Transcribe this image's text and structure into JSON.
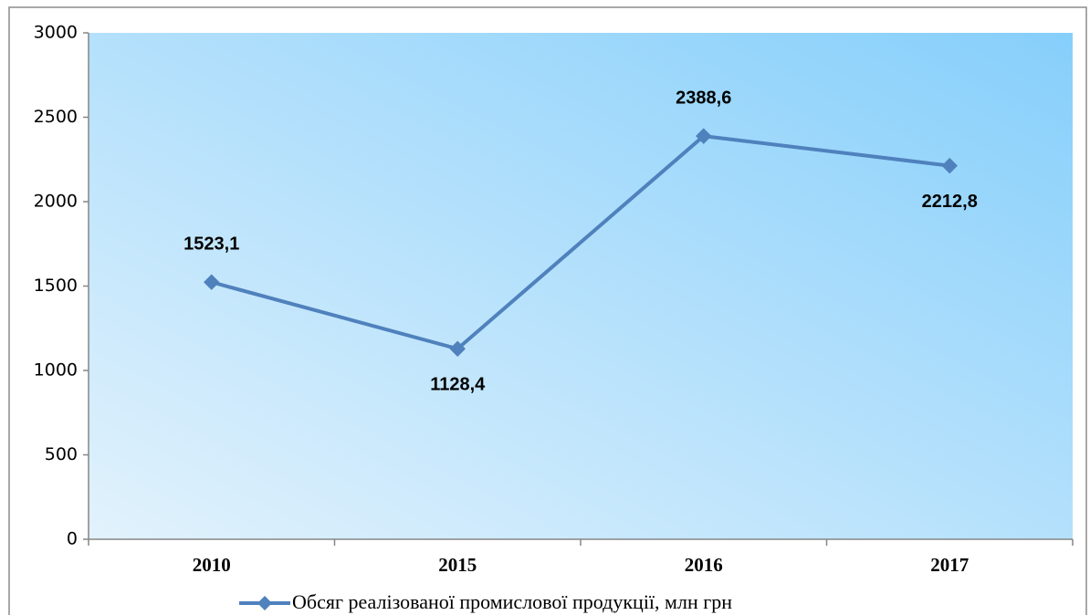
{
  "chart_data": {
    "type": "line",
    "categories": [
      "2010",
      "2015",
      "2016",
      "2017"
    ],
    "series": [
      {
        "name": "Обсяг реалізованої промислової продукції, млн грн",
        "color": "#4f81bd",
        "values": [
          1523.1,
          1128.4,
          2388.6,
          2212.8
        ],
        "value_labels": [
          "1523,1",
          "1128,4",
          "2388,6",
          "2212,8"
        ]
      }
    ],
    "ylim": [
      0,
      3000
    ],
    "yticks": [
      0,
      500,
      1000,
      1500,
      2000,
      2500,
      3000
    ],
    "legend": "bottom"
  }
}
